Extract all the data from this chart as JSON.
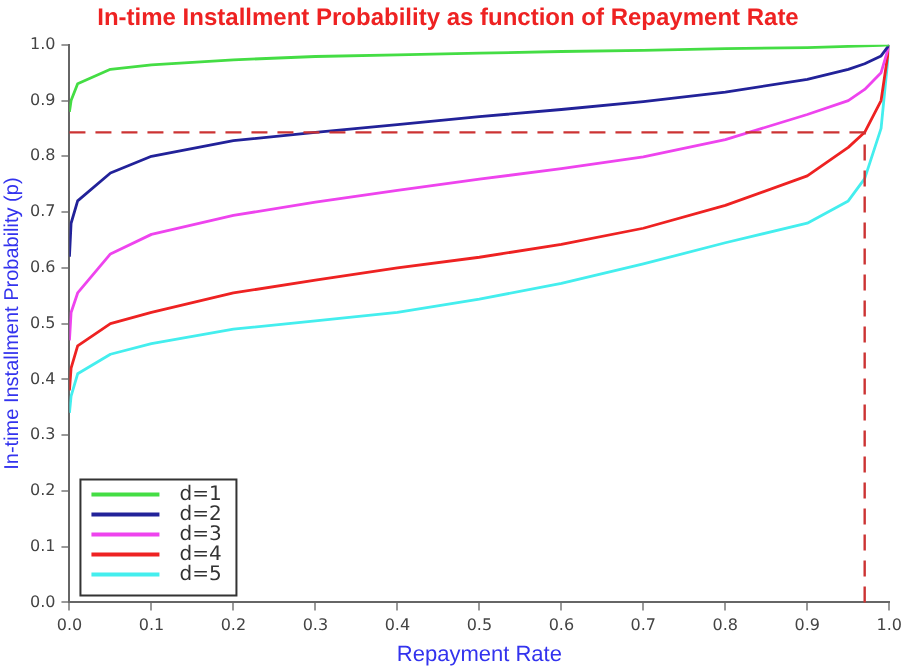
{
  "chart_data": {
    "type": "line",
    "title": "In-time Installment Probability as function of Repayment Rate",
    "xlabel": "Repayment Rate",
    "ylabel": "In-time Installment Probability (p)",
    "x": [
      0,
      0.002,
      0.01,
      0.05,
      0.1,
      0.2,
      0.3,
      0.4,
      0.5,
      0.6,
      0.7,
      0.8,
      0.9,
      0.95,
      0.97,
      0.99,
      1
    ],
    "series": [
      {
        "name": "d=1",
        "color": "#44dd44",
        "values": [
          0.88,
          0.9,
          0.93,
          0.956,
          0.964,
          0.973,
          0.979,
          0.982,
          0.985,
          0.988,
          0.99,
          0.993,
          0.995,
          0.997,
          0.998,
          0.999,
          1
        ]
      },
      {
        "name": "d=2",
        "color": "#222299",
        "values": [
          0.62,
          0.68,
          0.72,
          0.77,
          0.8,
          0.828,
          0.843,
          0.857,
          0.871,
          0.884,
          0.898,
          0.915,
          0.938,
          0.956,
          0.966,
          0.98,
          1
        ]
      },
      {
        "name": "d=3",
        "color": "#ee44ee",
        "values": [
          0.47,
          0.52,
          0.555,
          0.625,
          0.66,
          0.694,
          0.718,
          0.739,
          0.759,
          0.778,
          0.799,
          0.83,
          0.875,
          0.9,
          0.92,
          0.95,
          1
        ]
      },
      {
        "name": "d=4",
        "color": "#ee2222",
        "values": [
          0.38,
          0.42,
          0.46,
          0.5,
          0.52,
          0.555,
          0.578,
          0.6,
          0.619,
          0.642,
          0.671,
          0.712,
          0.765,
          0.816,
          0.843,
          0.9,
          1
        ]
      },
      {
        "name": "d=5",
        "color": "#44eeee",
        "values": [
          0.34,
          0.37,
          0.41,
          0.445,
          0.464,
          0.49,
          0.505,
          0.52,
          0.544,
          0.572,
          0.607,
          0.645,
          0.68,
          0.72,
          0.76,
          0.85,
          1
        ]
      }
    ],
    "ref_lines": [
      {
        "axis": "y",
        "value": 0.843,
        "color": "#cc3333",
        "line_style": "dashed"
      },
      {
        "axis": "x",
        "value": 0.97,
        "color": "#cc3333",
        "line_style": "dashed"
      }
    ],
    "xlim": [
      0,
      1
    ],
    "ylim": [
      0,
      1
    ],
    "xticks": [
      {
        "value": 0,
        "label": "0.0"
      },
      0.1,
      0.2,
      0.3,
      0.4,
      0.5,
      0.6,
      0.7,
      0.8,
      0.9,
      {
        "value": 1,
        "label": "1.0"
      }
    ],
    "yticks": [
      {
        "value": 0,
        "label": "0.0"
      },
      0.1,
      0.2,
      0.3,
      0.4,
      0.5,
      0.6,
      0.7,
      0.8,
      0.9,
      {
        "value": 1,
        "label": "1.0"
      }
    ],
    "grid": false,
    "legend": "bottom left",
    "marker": "none",
    "line_style": "solid"
  }
}
